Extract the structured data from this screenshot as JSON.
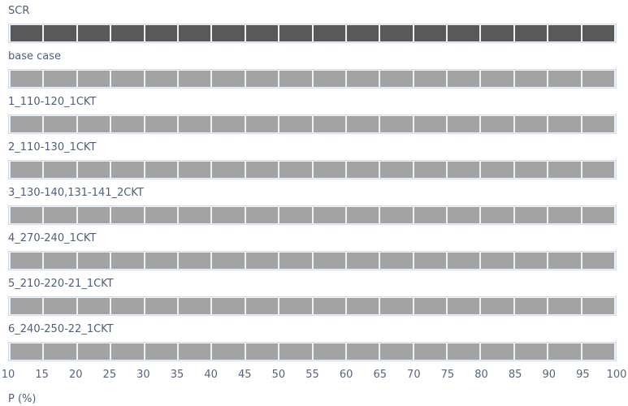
{
  "chart_data": {
    "type": "bar",
    "orientation": "horizontal",
    "title": "",
    "xlabel": "P (%)",
    "xlim": [
      10,
      100
    ],
    "xticks": [
      10,
      15,
      20,
      25,
      30,
      35,
      40,
      45,
      50,
      55,
      60,
      65,
      70,
      75,
      80,
      85,
      90,
      95,
      100
    ],
    "grid": "white vertical gridlines every 5 drawn over the bars",
    "legend": "none",
    "categories": [
      "SCR",
      "base case",
      "1_110-120_1CKT",
      "2_110-130_1CKT",
      "3_130-140,131-141_2CKT",
      "4_270-240_1CKT",
      "5_210-220-21_1CKT",
      "6_240-250-22_1CKT"
    ],
    "values": [
      100,
      100,
      100,
      100,
      100,
      100,
      100,
      100
    ],
    "bar_start": 10,
    "bar_colors": [
      "#595959",
      "#a3a3a3",
      "#a3a3a3",
      "#a3a3a3",
      "#a3a3a3",
      "#a3a3a3",
      "#a3a3a3",
      "#a3a3a3"
    ]
  },
  "colors": {
    "scr_bar": "#595959",
    "case_bar": "#a3a3a3",
    "track_border": "#d3ddea",
    "track_background": "#edf2f9",
    "label_text": "#4d5e7c",
    "tick_text": "#546583",
    "page_background": "#ffffff"
  }
}
